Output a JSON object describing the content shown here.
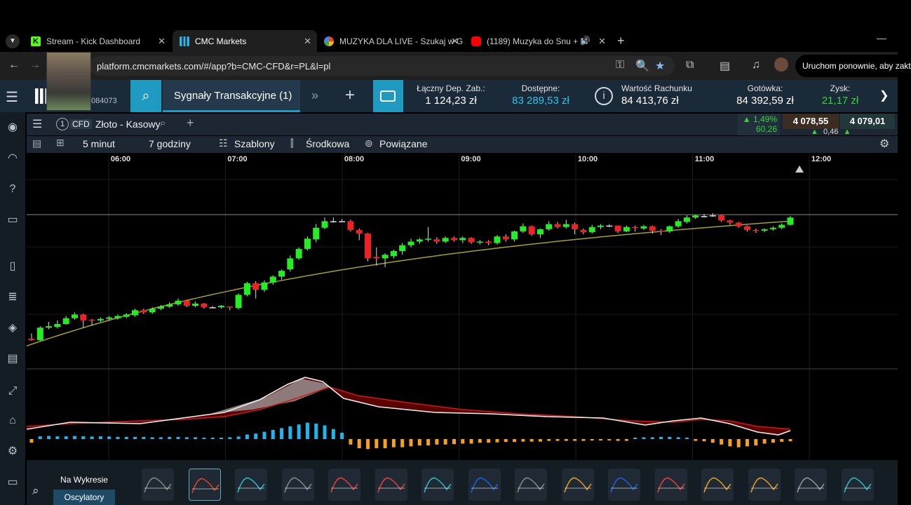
{
  "browser": {
    "tabs": [
      {
        "title": "Stream - Kick Dashboard",
        "icon": "kick-icon",
        "color": "#53fc18"
      },
      {
        "title": "CMC Markets",
        "icon": "cmc-icon",
        "color": "#2fb4e8"
      },
      {
        "title": "MUZYKA DLA LIVE - Szukaj w G",
        "icon": "google-icon",
        "color": "#4285f4"
      },
      {
        "title": "(1189) Muzyka do Snu + M",
        "icon": "youtube-icon",
        "color": "#ff0000"
      }
    ],
    "url": "platform.cmcmarkets.com/#/app?b=CMC-CFD&r=PL&l=pl",
    "restart_label": "Uruchom ponownie, aby zakt"
  },
  "header": {
    "account_partial": "084073",
    "signals_label": "Sygnały Transakcyjne (1)",
    "stats": [
      {
        "label": "Łączny Dep. Zab.:",
        "value": "1 124,23 zł",
        "style": "white"
      },
      {
        "label": "Dostępne:",
        "value": "83 289,53 zł",
        "style": "cyan"
      },
      {
        "label": "Wartość Rachunku",
        "value": "84 413,76 zł",
        "style": "white"
      },
      {
        "label": "Gotówka:",
        "value": "84 392,59 zł",
        "style": "white"
      },
      {
        "label": "Zysk:",
        "value": "21,17 zł",
        "style": "green"
      }
    ]
  },
  "instrument": {
    "badge": "CFD",
    "name": "Złoto - Kasowy",
    "change_pct": "1,49%",
    "change_abs": "60,26",
    "sell": "4 078,55",
    "buy": "4 079,01",
    "spread": "0,46"
  },
  "toolbar": {
    "interval": "5 minut",
    "range": "7 godziny",
    "templates": "Szablony",
    "price_type": "Środkowa",
    "linked": "Powiązane"
  },
  "time_axis": [
    "06:00",
    "07:00",
    "08:00",
    "09:00",
    "10:00",
    "11:00",
    "12:00"
  ],
  "bottom": {
    "on_chart": "Na Wykresie",
    "oscillators": "Oscylatory"
  },
  "colors": {
    "up": "#22ee22",
    "down": "#ee2222",
    "ma": "#a8a020",
    "hist_pos": "#1fb6ee",
    "hist_neg": "#f5a020",
    "header_bg": "#1b2a38",
    "accent": "#1f9bc2"
  },
  "chart_data": {
    "type": "candlestick",
    "candles": [
      [
        0.05,
        0.03,
        0.12,
        0.02
      ],
      [
        0.03,
        0.2,
        0.22,
        0.02
      ],
      [
        0.2,
        0.22,
        0.28,
        0.18
      ],
      [
        0.21,
        0.25,
        0.3,
        0.19
      ],
      [
        0.25,
        0.33,
        0.36,
        0.24
      ],
      [
        0.33,
        0.38,
        0.41,
        0.31
      ],
      [
        0.38,
        0.3,
        0.39,
        0.2
      ],
      [
        0.31,
        0.3,
        0.32,
        0.23
      ],
      [
        0.3,
        0.32,
        0.34,
        0.28
      ],
      [
        0.32,
        0.34,
        0.36,
        0.3
      ],
      [
        0.33,
        0.36,
        0.38,
        0.31
      ],
      [
        0.35,
        0.38,
        0.4,
        0.33
      ],
      [
        0.37,
        0.44,
        0.46,
        0.35
      ],
      [
        0.44,
        0.41,
        0.46,
        0.39
      ],
      [
        0.41,
        0.46,
        0.48,
        0.39
      ],
      [
        0.46,
        0.49,
        0.51,
        0.44
      ],
      [
        0.49,
        0.52,
        0.55,
        0.47
      ],
      [
        0.52,
        0.57,
        0.6,
        0.5
      ],
      [
        0.57,
        0.5,
        0.58,
        0.48
      ],
      [
        0.5,
        0.53,
        0.56,
        0.48
      ],
      [
        0.53,
        0.48,
        0.54,
        0.46
      ],
      [
        0.48,
        0.48,
        0.5,
        0.47
      ],
      [
        0.48,
        0.5,
        0.51,
        0.46
      ],
      [
        0.49,
        0.48,
        0.49,
        0.44
      ],
      [
        0.47,
        0.65,
        0.67,
        0.45
      ],
      [
        0.65,
        0.81,
        0.83,
        0.63
      ],
      [
        0.81,
        0.72,
        0.84,
        0.6
      ],
      [
        0.72,
        0.82,
        0.85,
        0.69
      ],
      [
        0.82,
        0.9,
        0.92,
        0.79
      ],
      [
        0.9,
        0.98,
        1.0,
        0.86
      ],
      [
        1.0,
        1.15,
        1.19,
        0.97
      ],
      [
        1.15,
        1.28,
        1.3,
        1.13
      ],
      [
        1.28,
        1.42,
        1.45,
        1.26
      ],
      [
        1.41,
        1.57,
        1.62,
        1.37
      ],
      [
        1.57,
        1.66,
        1.71,
        1.55
      ],
      [
        1.66,
        1.66,
        1.71,
        1.64
      ],
      [
        1.66,
        1.66,
        1.69,
        1.65
      ],
      [
        1.66,
        1.54,
        1.68,
        1.52
      ],
      [
        1.54,
        1.49,
        1.56,
        1.4
      ],
      [
        1.49,
        1.15,
        1.5,
        1.11
      ],
      [
        1.17,
        1.15,
        1.3,
        1.05
      ],
      [
        1.15,
        1.2,
        1.22,
        1.03
      ],
      [
        1.18,
        1.25,
        1.27,
        1.15
      ],
      [
        1.25,
        1.33,
        1.36,
        1.2
      ],
      [
        1.33,
        1.38,
        1.42,
        1.3
      ],
      [
        1.38,
        1.41,
        1.43,
        1.35
      ],
      [
        1.41,
        1.42,
        1.58,
        1.38
      ],
      [
        1.41,
        1.38,
        1.44,
        1.35
      ],
      [
        1.38,
        1.43,
        1.45,
        1.36
      ],
      [
        1.43,
        1.4,
        1.45,
        1.38
      ],
      [
        1.4,
        1.43,
        1.45,
        1.36
      ],
      [
        1.43,
        1.37,
        1.44,
        1.35
      ],
      [
        1.37,
        1.38,
        1.4,
        1.34
      ],
      [
        1.38,
        1.36,
        1.4,
        1.33
      ],
      [
        1.36,
        1.45,
        1.47,
        1.34
      ],
      [
        1.45,
        1.41,
        1.48,
        1.38
      ],
      [
        1.41,
        1.52,
        1.53,
        1.38
      ],
      [
        1.52,
        1.59,
        1.63,
        1.5
      ],
      [
        1.59,
        1.48,
        1.6,
        1.46
      ],
      [
        1.48,
        1.55,
        1.56,
        1.43
      ],
      [
        1.55,
        1.62,
        1.66,
        1.53
      ],
      [
        1.62,
        1.58,
        1.65,
        1.56
      ],
      [
        1.58,
        1.62,
        1.68,
        1.56
      ],
      [
        1.62,
        1.55,
        1.64,
        1.48
      ],
      [
        1.54,
        1.51,
        1.56,
        1.48
      ],
      [
        1.51,
        1.58,
        1.61,
        1.49
      ],
      [
        1.58,
        1.6,
        1.62,
        1.55
      ],
      [
        1.6,
        1.6,
        1.62,
        1.58
      ],
      [
        1.6,
        1.52,
        1.6,
        1.5
      ],
      [
        1.52,
        1.58,
        1.6,
        1.51
      ],
      [
        1.58,
        1.57,
        1.6,
        1.52
      ],
      [
        1.56,
        1.59,
        1.61,
        1.54
      ],
      [
        1.59,
        1.53,
        1.6,
        1.49
      ],
      [
        1.53,
        1.52,
        1.55,
        1.47
      ],
      [
        1.52,
        1.59,
        1.6,
        1.5
      ],
      [
        1.59,
        1.66,
        1.69,
        1.57
      ],
      [
        1.65,
        1.71,
        1.74,
        1.63
      ],
      [
        1.71,
        1.74,
        1.75,
        1.69
      ],
      [
        1.73,
        1.73,
        1.76,
        1.71
      ],
      [
        1.74,
        1.74,
        1.77,
        1.72
      ],
      [
        1.74,
        1.67,
        1.75,
        1.65
      ],
      [
        1.67,
        1.64,
        1.68,
        1.61
      ],
      [
        1.64,
        1.59,
        1.65,
        1.57
      ],
      [
        1.59,
        1.54,
        1.6,
        1.52
      ],
      [
        1.54,
        1.53,
        1.56,
        1.5
      ],
      [
        1.53,
        1.55,
        1.56,
        1.51
      ],
      [
        1.55,
        1.57,
        1.59,
        1.53
      ],
      [
        1.57,
        1.61,
        1.63,
        1.55
      ],
      [
        1.61,
        1.71,
        1.73,
        1.6
      ]
    ],
    "time_labels": [
      "06:00",
      "07:00",
      "08:00",
      "09:00",
      "10:00",
      "11:00",
      "12:00"
    ],
    "oscillator_histogram": [
      -0.2,
      0.15,
      0.17,
      0.15,
      0.15,
      0.17,
      0.15,
      0.14,
      0.15,
      0.14,
      0.12,
      0.12,
      0.12,
      0.12,
      0.1,
      0.1,
      0.12,
      0.12,
      0.1,
      0.1,
      0.08,
      0.08,
      0.08,
      0.1,
      0.14,
      0.25,
      0.3,
      0.4,
      0.5,
      0.6,
      0.7,
      0.8,
      0.9,
      0.85,
      0.75,
      0.55,
      0.35,
      -0.3,
      -0.5,
      -0.55,
      -0.5,
      -0.5,
      -0.45,
      -0.45,
      -0.4,
      -0.35,
      -0.35,
      -0.3,
      -0.3,
      -0.28,
      -0.25,
      -0.25,
      -0.2,
      -0.2,
      -0.18,
      -0.16,
      -0.16,
      -0.14,
      -0.14,
      -0.14,
      -0.1,
      -0.1,
      -0.1,
      -0.1,
      -0.1,
      -0.08,
      -0.08,
      -0.08,
      -0.1,
      -0.1,
      0.08,
      0.1,
      0.1,
      0.12,
      0.12,
      0.1,
      0.08,
      -0.1,
      -0.12,
      -0.2,
      -0.3,
      -0.4,
      -0.45,
      -0.4,
      -0.35,
      -0.25,
      -0.2,
      -0.15,
      -0.12
    ]
  }
}
